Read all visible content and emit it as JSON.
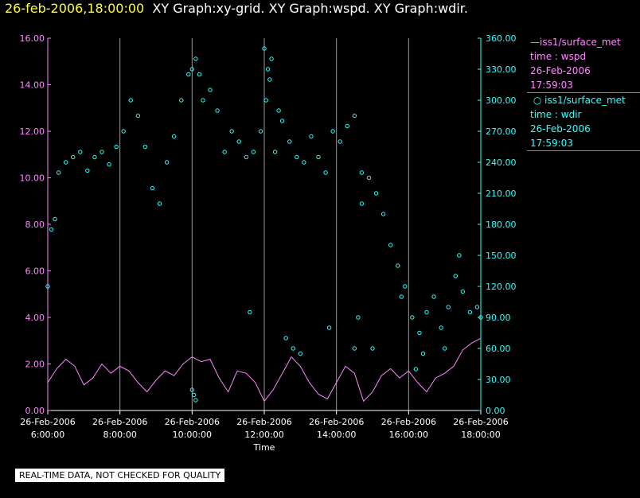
{
  "header": {
    "title_date": "26-feb-2006,18:00:00",
    "title_rest": "XY Graph:xy-grid.  XY Graph:wspd.  XY Graph:wdir."
  },
  "legend": {
    "wspd": {
      "name": "iss1/surface_met",
      "var": "time : wspd",
      "date": "26-Feb-2006",
      "time": "17:59:03",
      "color": "#ff88ff"
    },
    "wdir": {
      "name": "iss1/surface_met",
      "var": "time : wdir",
      "date": "26-Feb-2006",
      "time": "17:59:03",
      "color": "#33ffff"
    }
  },
  "notice": "REAL-TIME DATA, NOT CHECKED FOR QUALITY",
  "chart_data": {
    "type": "line",
    "xlabel": "Time",
    "xlim": [
      6.0,
      18.0
    ],
    "x_ticks": [
      {
        "x": 6,
        "date": "26-Feb-2006",
        "time": "6:00:00"
      },
      {
        "x": 8,
        "date": "26-Feb-2006",
        "time": "8:00:00"
      },
      {
        "x": 10,
        "date": "26-Feb-2006",
        "time": "10:00:00"
      },
      {
        "x": 12,
        "date": "26-Feb-2006",
        "time": "12:00:00"
      },
      {
        "x": 14,
        "date": "26-Feb-2006",
        "time": "14:00:00"
      },
      {
        "x": 16,
        "date": "26-Feb-2006",
        "time": "16:00:00"
      },
      {
        "x": 18,
        "date": "26-Feb-2006",
        "time": "18:00:00"
      }
    ],
    "grid": "vertical",
    "left_axis": {
      "ylim": [
        0,
        16
      ],
      "ticks": [
        "0.00",
        "2.00",
        "4.00",
        "6.00",
        "8.00",
        "10.00",
        "12.00",
        "14.00",
        "16.00"
      ],
      "color": "#ff88ff"
    },
    "right_axis": {
      "ylim": [
        0,
        360
      ],
      "ticks": [
        "0.00",
        "30.00",
        "60.00",
        "90.00",
        "120.00",
        "150.00",
        "180.00",
        "210.00",
        "240.00",
        "270.00",
        "300.00",
        "330.00",
        "360.00"
      ],
      "color": "#33ffff"
    },
    "series": [
      {
        "name": "wspd",
        "axis": "left",
        "style": "line",
        "color": "#ff88ff",
        "x": [
          6.0,
          6.25,
          6.5,
          6.75,
          7.0,
          7.25,
          7.5,
          7.75,
          8.0,
          8.25,
          8.5,
          8.75,
          9.0,
          9.25,
          9.5,
          9.75,
          10.0,
          10.25,
          10.5,
          10.75,
          11.0,
          11.25,
          11.5,
          11.75,
          12.0,
          12.25,
          12.5,
          12.75,
          13.0,
          13.25,
          13.5,
          13.75,
          14.0,
          14.25,
          14.5,
          14.75,
          15.0,
          15.25,
          15.5,
          15.75,
          16.0,
          16.25,
          16.5,
          16.75,
          17.0,
          17.25,
          17.5,
          17.75,
          18.0
        ],
        "y": [
          1.2,
          1.8,
          2.2,
          1.9,
          1.1,
          1.4,
          2.0,
          1.6,
          1.9,
          1.7,
          1.2,
          0.8,
          1.3,
          1.7,
          1.5,
          2.0,
          2.3,
          2.1,
          2.2,
          1.4,
          0.8,
          1.7,
          1.6,
          1.2,
          0.4,
          0.9,
          1.6,
          2.3,
          1.9,
          1.2,
          0.7,
          0.5,
          1.2,
          1.9,
          1.6,
          0.4,
          0.8,
          1.5,
          1.8,
          1.4,
          1.7,
          1.2,
          0.8,
          1.4,
          1.6,
          1.9,
          2.6,
          2.9,
          3.1
        ]
      },
      {
        "name": "wdir",
        "axis": "right",
        "style": "markers",
        "color": "#33ffff",
        "x": [
          6.0,
          6.1,
          6.2,
          6.3,
          6.5,
          6.7,
          6.9,
          7.1,
          7.3,
          7.5,
          7.7,
          7.9,
          8.1,
          8.3,
          8.5,
          8.7,
          8.9,
          9.1,
          9.3,
          9.5,
          9.7,
          9.9,
          10.0,
          10.1,
          10.2,
          10.3,
          10.5,
          10.7,
          10.9,
          11.1,
          11.3,
          11.5,
          11.7,
          11.9,
          12.05,
          12.15,
          12.3,
          12.5,
          12.7,
          12.9,
          13.1,
          13.3,
          13.5,
          13.7,
          13.9,
          14.1,
          14.3,
          14.5,
          14.7,
          14.9,
          15.1,
          15.3,
          15.5,
          15.7,
          15.9,
          16.1,
          16.3,
          16.5,
          16.7,
          16.9,
          17.1,
          17.3,
          17.5,
          17.7,
          17.9,
          18.0,
          10.0,
          10.05,
          10.1,
          11.6,
          12.0,
          12.1,
          12.2,
          12.4,
          12.6,
          12.8,
          13.0,
          13.8,
          14.5,
          14.6,
          14.7,
          15.0,
          15.8,
          16.2,
          16.4,
          17.0,
          17.4
        ],
        "y": [
          120,
          175,
          185,
          230,
          240,
          245,
          250,
          232,
          245,
          250,
          238,
          255,
          270,
          300,
          285,
          255,
          215,
          200,
          240,
          265,
          300,
          325,
          330,
          340,
          325,
          300,
          310,
          290,
          250,
          270,
          260,
          245,
          250,
          270,
          300,
          320,
          250,
          280,
          260,
          245,
          240,
          265,
          245,
          230,
          270,
          260,
          275,
          285,
          230,
          225,
          210,
          190,
          160,
          140,
          120,
          90,
          75,
          95,
          110,
          80,
          100,
          130,
          115,
          95,
          100,
          90,
          20,
          15,
          10,
          95,
          350,
          330,
          340,
          290,
          70,
          60,
          55,
          80,
          60,
          90,
          200,
          60,
          110,
          40,
          55,
          60,
          150
        ]
      }
    ]
  }
}
